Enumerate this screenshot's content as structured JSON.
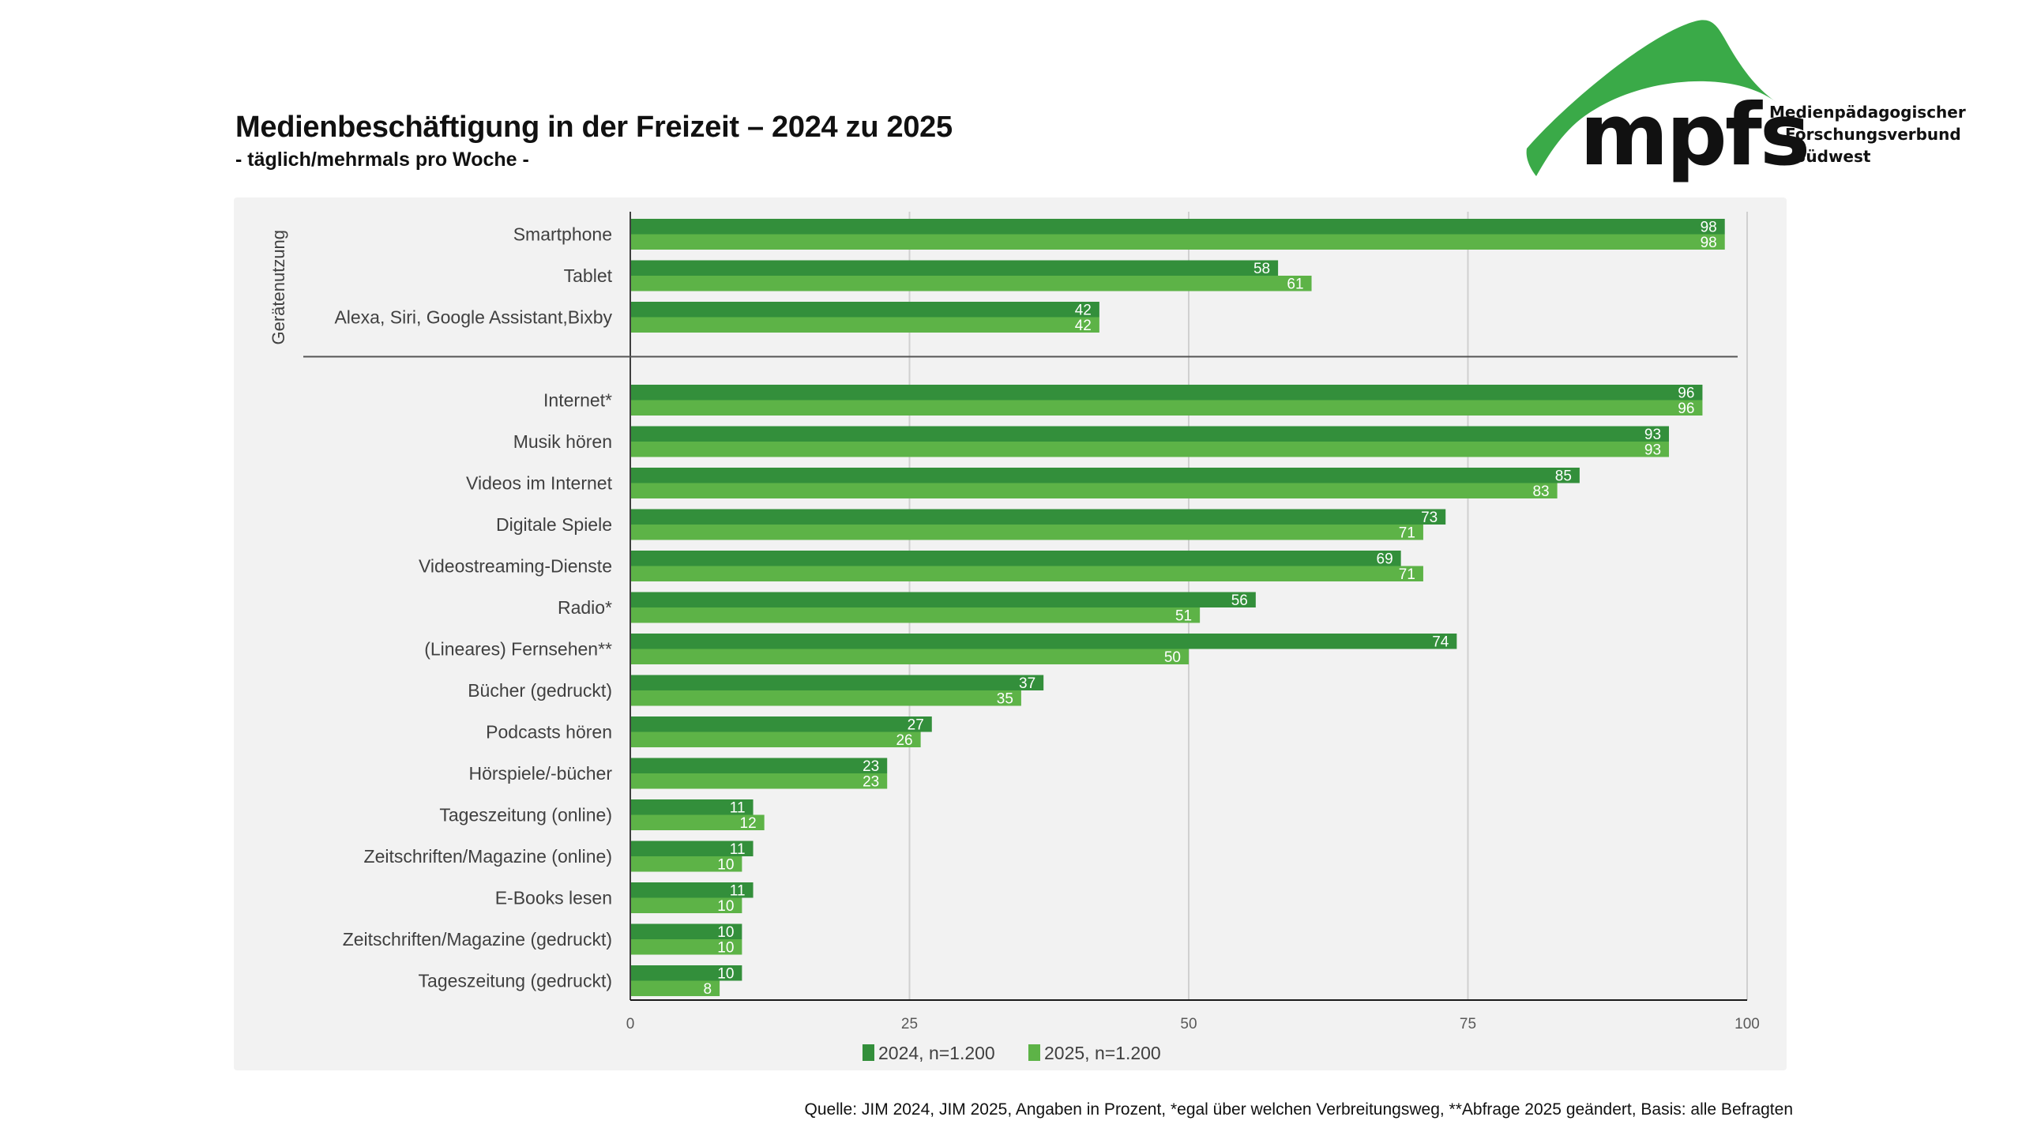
{
  "header": {
    "title": "Medienbeschäftigung in der Freizeit – 2024 zu 2025",
    "subtitle": "- täglich/mehrmals pro Woche -"
  },
  "logo": {
    "wordmark": "mpfs",
    "line1": "Medienpädagogischer",
    "line2": "Forschungsverbund",
    "line3": "Südwest",
    "color": "#3aaa48"
  },
  "footer": {
    "source": "Quelle: JIM 2024, JIM 2025, Angaben in Prozent, *egal über welchen Verbreitungsweg, **Abfrage 2025 geändert, Basis: alle Befragten"
  },
  "chart_data": {
    "type": "bar",
    "orientation": "horizontal",
    "title": "Medienbeschäftigung in der Freizeit – 2024 zu 2025",
    "subtitle": "- täglich/mehrmals pro Woche -",
    "xlabel": "",
    "ylabel": "",
    "xlim": [
      0,
      100
    ],
    "xticks": [
      0,
      25,
      50,
      75,
      100
    ],
    "grid": true,
    "legend_position": "bottom",
    "groups": [
      {
        "label": "Gerätenutzung",
        "categories": [
          "Smartphone",
          "Tablet",
          "Alexa, Siri, Google Assistant,Bixby"
        ]
      },
      {
        "label": "",
        "categories": [
          "Internet*",
          "Musik hören",
          "Videos im Internet",
          "Digitale Spiele",
          "Videostreaming-Dienste",
          "Radio*",
          "(Lineares) Fernsehen**",
          "Bücher (gedruckt)",
          "Podcasts hören",
          "Hörspiele/-bücher",
          "Tageszeitung (online)",
          "Zeitschriften/Magazine (online)",
          "E-Books lesen",
          "Zeitschriften/Magazine (gedruckt)",
          "Tageszeitung (gedruckt)"
        ]
      }
    ],
    "categories": [
      "Smartphone",
      "Tablet",
      "Alexa, Siri, Google Assistant,Bixby",
      "Internet*",
      "Musik hören",
      "Videos im Internet",
      "Digitale Spiele",
      "Videostreaming-Dienste",
      "Radio*",
      "(Lineares) Fernsehen**",
      "Bücher (gedruckt)",
      "Podcasts hören",
      "Hörspiele/-bücher",
      "Tageszeitung (online)",
      "Zeitschriften/Magazine (online)",
      "E-Books lesen",
      "Zeitschriften/Magazine (gedruckt)",
      "Tageszeitung (gedruckt)"
    ],
    "series": [
      {
        "name": "2024, n=1.200",
        "color": "#338f3b",
        "values": [
          98,
          58,
          42,
          96,
          93,
          85,
          73,
          69,
          56,
          74,
          37,
          27,
          23,
          11,
          11,
          11,
          10,
          10
        ]
      },
      {
        "name": "2025, n=1.200",
        "color": "#5db347",
        "values": [
          98,
          61,
          42,
          96,
          93,
          83,
          71,
          71,
          51,
          50,
          35,
          26,
          23,
          12,
          10,
          10,
          10,
          8
        ]
      }
    ]
  }
}
